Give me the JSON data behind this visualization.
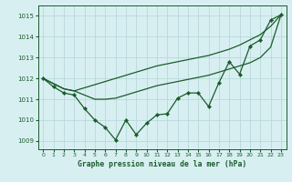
{
  "xlabel": "Graphe pression niveau de la mer (hPa)",
  "background_color": "#d8eff2",
  "grid_color": "#b8d8dc",
  "line_color": "#1a5c2a",
  "xlim": [
    -0.5,
    23.5
  ],
  "ylim": [
    1008.6,
    1015.5
  ],
  "yticks": [
    1009,
    1010,
    1011,
    1012,
    1013,
    1014,
    1015
  ],
  "xticks": [
    0,
    1,
    2,
    3,
    4,
    5,
    6,
    7,
    8,
    9,
    10,
    11,
    12,
    13,
    14,
    15,
    16,
    17,
    18,
    19,
    20,
    21,
    22,
    23
  ],
  "main_series": [
    1012.0,
    1011.6,
    1011.3,
    1011.2,
    1010.55,
    1010.0,
    1009.65,
    1009.05,
    1010.0,
    1009.3,
    1009.85,
    1010.25,
    1010.3,
    1011.05,
    1011.3,
    1011.3,
    1010.65,
    1011.8,
    1012.8,
    1012.2,
    1013.55,
    1013.85,
    1014.8,
    1015.05
  ],
  "smooth_upper": [
    1012.0,
    1011.75,
    1011.5,
    1011.4,
    1011.55,
    1011.7,
    1011.85,
    1012.0,
    1012.15,
    1012.3,
    1012.45,
    1012.6,
    1012.7,
    1012.8,
    1012.9,
    1013.0,
    1013.1,
    1013.25,
    1013.4,
    1013.6,
    1013.85,
    1014.1,
    1014.5,
    1015.05
  ],
  "smooth_lower": [
    1012.0,
    1011.75,
    1011.5,
    1011.4,
    1011.2,
    1011.0,
    1011.0,
    1011.05,
    1011.2,
    1011.35,
    1011.5,
    1011.65,
    1011.75,
    1011.85,
    1011.95,
    1012.05,
    1012.15,
    1012.3,
    1012.45,
    1012.6,
    1012.75,
    1013.0,
    1013.5,
    1015.05
  ],
  "marker_size": 2.2,
  "line_width": 0.9
}
